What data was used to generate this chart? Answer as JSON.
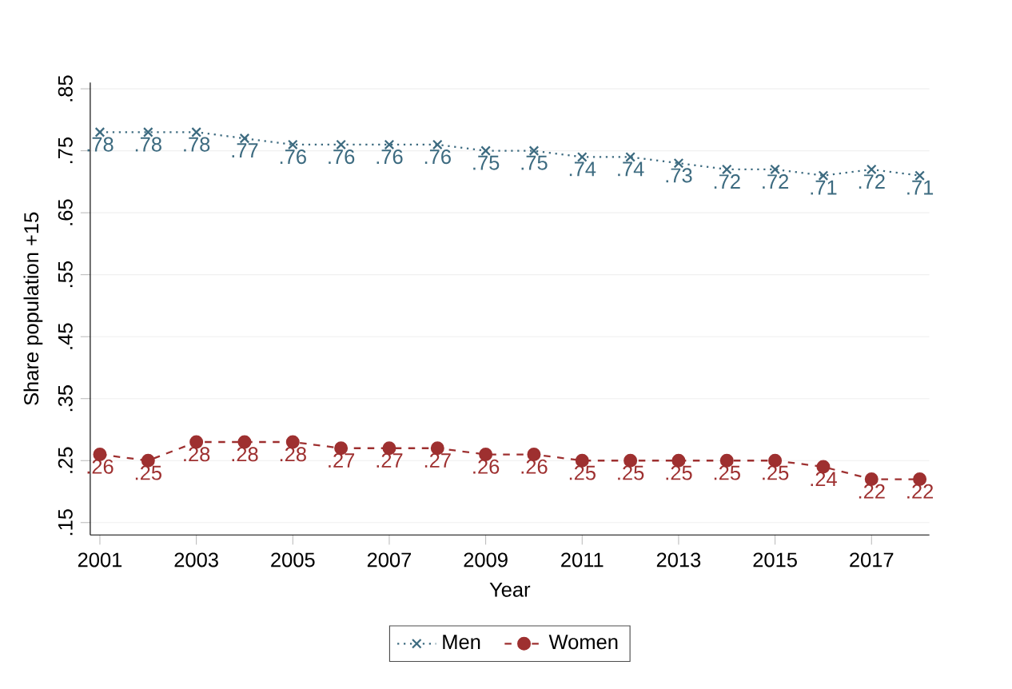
{
  "chart_data": {
    "type": "line",
    "xlabel": "Year",
    "ylabel": "Share population +15",
    "x": [
      2001,
      2002,
      2003,
      2004,
      2005,
      2006,
      2007,
      2008,
      2009,
      2010,
      2011,
      2012,
      2013,
      2014,
      2015,
      2016,
      2017,
      2018
    ],
    "series": [
      {
        "name": "Men",
        "color": "#3d6b80",
        "marker": "cross",
        "line_style": "dotted",
        "values": [
          0.78,
          0.78,
          0.78,
          0.77,
          0.76,
          0.76,
          0.76,
          0.76,
          0.75,
          0.75,
          0.74,
          0.74,
          0.73,
          0.72,
          0.72,
          0.71,
          0.72,
          0.71
        ],
        "value_labels": [
          ".78",
          ".78",
          ".78",
          ".77",
          ".76",
          ".76",
          ".76",
          ".76",
          ".75",
          ".75",
          ".74",
          ".74",
          ".73",
          ".72",
          ".72",
          ".71",
          ".72",
          ".71"
        ]
      },
      {
        "name": "Women",
        "color": "#9e3030",
        "marker": "circle",
        "line_style": "dashed",
        "values": [
          0.26,
          0.25,
          0.28,
          0.28,
          0.28,
          0.27,
          0.27,
          0.27,
          0.26,
          0.26,
          0.25,
          0.25,
          0.25,
          0.25,
          0.25,
          0.24,
          0.22,
          0.22
        ],
        "value_labels": [
          ".26",
          ".25",
          ".28",
          ".28",
          ".28",
          ".27",
          ".27",
          ".27",
          ".26",
          ".26",
          ".25",
          ".25",
          ".25",
          ".25",
          ".25",
          ".24",
          ".22",
          ".22"
        ]
      }
    ],
    "xlim": [
      2000.8,
      2018.2
    ],
    "xticks": [
      2001,
      2003,
      2005,
      2007,
      2009,
      2011,
      2013,
      2015,
      2017
    ],
    "ylim": [
      0.13,
      0.86
    ],
    "yticks": [
      {
        "value": 0.15,
        "label": ".15"
      },
      {
        "value": 0.25,
        "label": ".25"
      },
      {
        "value": 0.35,
        "label": ".35"
      },
      {
        "value": 0.45,
        "label": ".45"
      },
      {
        "value": 0.55,
        "label": ".55"
      },
      {
        "value": 0.65,
        "label": ".65"
      },
      {
        "value": 0.75,
        "label": ".75"
      },
      {
        "value": 0.85,
        "label": ".85"
      }
    ],
    "grid": "y",
    "legend": "bottom"
  }
}
